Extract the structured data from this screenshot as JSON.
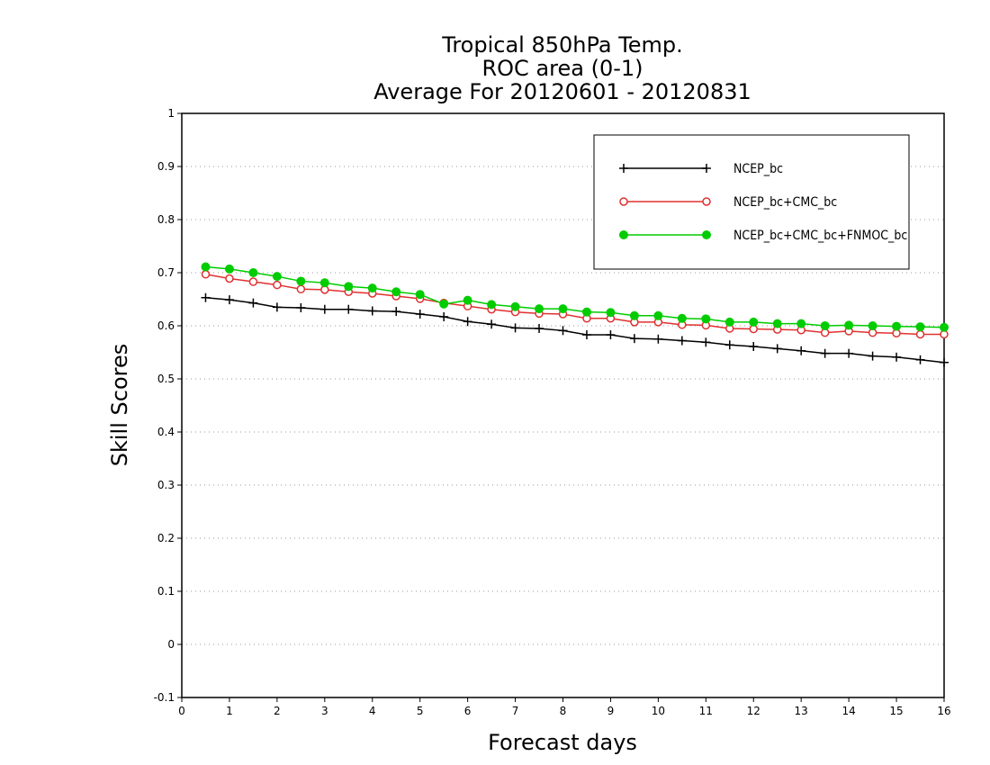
{
  "chart_data": {
    "type": "line",
    "title_lines": [
      "Tropical 850hPa Temp.",
      "ROC area (0-1)",
      "Average For 20120601 - 20120831"
    ],
    "xlabel": "Forecast days",
    "ylabel": "Skill Scores",
    "xlim": [
      0,
      16
    ],
    "ylim": [
      -0.1,
      1
    ],
    "x_ticks": [
      0,
      1,
      2,
      3,
      4,
      5,
      6,
      7,
      8,
      9,
      10,
      11,
      12,
      13,
      14,
      15,
      16
    ],
    "y_ticks": [
      -0.1,
      0,
      0.1,
      0.2,
      0.3,
      0.4,
      0.5,
      0.6,
      0.7,
      0.8,
      0.9,
      1
    ],
    "y_tick_labels": [
      "-0.1",
      "0",
      "0.1",
      "0.2",
      "0.3",
      "0.4",
      "0.5",
      "0.6",
      "0.7",
      "0.8",
      "0.9",
      "1"
    ],
    "grid": "horizontal dotted",
    "legend_position": "top-right",
    "x": [
      0.5,
      1.0,
      1.5,
      2.0,
      2.5,
      3.0,
      3.5,
      4.0,
      4.5,
      5.0,
      5.5,
      6.0,
      6.5,
      7.0,
      7.5,
      8.0,
      8.5,
      9.0,
      9.5,
      10.0,
      10.5,
      11.0,
      11.5,
      12.0,
      12.5,
      13.0,
      13.5,
      14.0,
      14.5,
      15.0,
      15.5,
      16.0
    ],
    "series": [
      {
        "name": "NCEP_bc",
        "color": "#000000",
        "marker": "plus",
        "values": [
          0.653,
          0.649,
          0.643,
          0.635,
          0.634,
          0.631,
          0.631,
          0.628,
          0.627,
          0.622,
          0.617,
          0.608,
          0.603,
          0.596,
          0.595,
          0.591,
          0.583,
          0.583,
          0.576,
          0.575,
          0.572,
          0.569,
          0.564,
          0.561,
          0.557,
          0.553,
          0.548,
          0.548,
          0.543,
          0.541,
          0.536,
          0.531
        ]
      },
      {
        "name": "NCEP_bc+CMC_bc",
        "color": "#e03030",
        "marker": "open-circle",
        "values": [
          0.697,
          0.689,
          0.683,
          0.677,
          0.669,
          0.668,
          0.664,
          0.661,
          0.656,
          0.651,
          0.643,
          0.637,
          0.631,
          0.626,
          0.623,
          0.622,
          0.614,
          0.614,
          0.607,
          0.607,
          0.602,
          0.601,
          0.595,
          0.594,
          0.593,
          0.592,
          0.587,
          0.59,
          0.587,
          0.586,
          0.584,
          0.584
        ]
      },
      {
        "name": "NCEP_bc+CMC_bc+FNMOC_bc",
        "color": "#00cc00",
        "marker": "filled-circle",
        "values": [
          0.711,
          0.707,
          0.7,
          0.693,
          0.684,
          0.681,
          0.674,
          0.671,
          0.664,
          0.659,
          0.641,
          0.648,
          0.64,
          0.636,
          0.632,
          0.632,
          0.626,
          0.625,
          0.619,
          0.619,
          0.614,
          0.613,
          0.607,
          0.607,
          0.604,
          0.604,
          0.6,
          0.601,
          0.6,
          0.599,
          0.598,
          0.597
        ]
      }
    ]
  }
}
